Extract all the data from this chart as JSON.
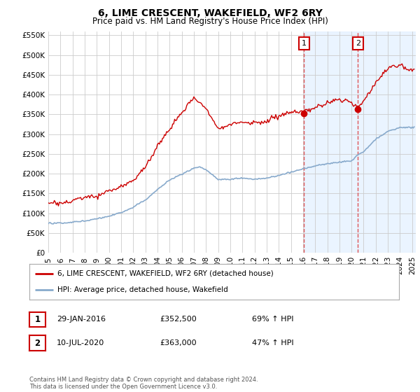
{
  "title": "6, LIME CRESCENT, WAKEFIELD, WF2 6RY",
  "subtitle": "Price paid vs. HM Land Registry's House Price Index (HPI)",
  "title_fontsize": 10,
  "subtitle_fontsize": 8.5,
  "ylim": [
    0,
    560000
  ],
  "yticks": [
    0,
    50000,
    100000,
    150000,
    200000,
    250000,
    300000,
    350000,
    400000,
    450000,
    500000,
    550000
  ],
  "ytick_labels": [
    "£0",
    "£50K",
    "£100K",
    "£150K",
    "£200K",
    "£250K",
    "£300K",
    "£350K",
    "£400K",
    "£450K",
    "£500K",
    "£550K"
  ],
  "background_color": "#ffffff",
  "grid_color": "#cccccc",
  "red_line_color": "#cc0000",
  "blue_line_color": "#88aacc",
  "highlight_region_color": "#ddeeff",
  "vline_color": "#dd4444",
  "legend_entry1": "6, LIME CRESCENT, WAKEFIELD, WF2 6RY (detached house)",
  "legend_entry2": "HPI: Average price, detached house, Wakefield",
  "transaction1_label": "1",
  "transaction1_date": "29-JAN-2016",
  "transaction1_price": "£352,500",
  "transaction1_hpi": "69% ↑ HPI",
  "transaction2_label": "2",
  "transaction2_date": "10-JUL-2020",
  "transaction2_price": "£363,000",
  "transaction2_hpi": "47% ↑ HPI",
  "footnote": "Contains HM Land Registry data © Crown copyright and database right 2024.\nThis data is licensed under the Open Government Licence v3.0.",
  "marker1_x": 2016.08,
  "marker1_y": 352500,
  "marker2_x": 2020.53,
  "marker2_y": 363000,
  "vline1_x": 2016.08,
  "vline2_x": 2020.53,
  "highlight_x_start": 2016.08,
  "xlim_left": 1995.0,
  "xlim_right": 2025.3,
  "xticks": [
    1995,
    1996,
    1997,
    1998,
    1999,
    2000,
    2001,
    2002,
    2003,
    2004,
    2005,
    2006,
    2007,
    2008,
    2009,
    2010,
    2011,
    2012,
    2013,
    2014,
    2015,
    2016,
    2017,
    2018,
    2019,
    2020,
    2021,
    2022,
    2023,
    2024,
    2025
  ]
}
